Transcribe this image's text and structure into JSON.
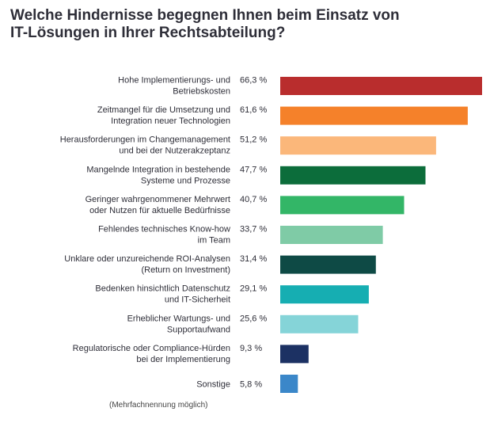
{
  "chart_data": {
    "type": "bar",
    "orientation": "horizontal",
    "title_lines": [
      "Welche Hindernisse begegnen Ihnen beim Einsatz von",
      "IT-Lösungen in Ihrer Rechtsabteilung?"
    ],
    "footnote": "(Mehrfachnennung möglich)",
    "unit": "%",
    "xlim": [
      0,
      66.3
    ],
    "grid": false,
    "legend": "none",
    "categories": [
      [
        "Hohe Implementierungs- und",
        "Betriebskosten"
      ],
      [
        "Zeitmangel für die Umsetzung und",
        "Integration neuer Technologien"
      ],
      [
        "Herausforderungen im Changemanagement",
        "und bei der Nutzerakzeptanz"
      ],
      [
        "Mangelnde Integration in bestehende",
        "Systeme und Prozesse"
      ],
      [
        "Geringer wahrgenommener Mehrwert",
        "oder Nutzen für aktuelle Bedürfnisse"
      ],
      [
        "Fehlendes technisches Know-how",
        "im Team"
      ],
      [
        "Unklare oder unzureichende ROI-Analysen",
        "(Return on Investment)"
      ],
      [
        "Bedenken hinsichtlich Datenschutz",
        "und IT-Sicherheit"
      ],
      [
        "Erheblicher Wartungs- und",
        "Supportaufwand"
      ],
      [
        "Regulatorische oder Compliance-Hürden",
        "bei der Implementierung"
      ],
      [
        "Sonstige"
      ]
    ],
    "values": [
      66.3,
      61.6,
      51.2,
      47.7,
      40.7,
      33.7,
      31.4,
      29.1,
      25.6,
      9.3,
      5.8
    ],
    "value_labels": [
      "66,3 %",
      "61,6 %",
      "51,2 %",
      "47,7 %",
      "40,7 %",
      "33,7 %",
      "31,4 %",
      "29,1 %",
      "25,6 %",
      "9,3 %",
      "5,8 %"
    ],
    "colors": [
      "#b92d2d",
      "#f5812a",
      "#fbb77a",
      "#0c6d3b",
      "#33b667",
      "#7fcba6",
      "#0e4a45",
      "#16aeb2",
      "#85d4d8",
      "#1c3163",
      "#3b87c9"
    ]
  }
}
